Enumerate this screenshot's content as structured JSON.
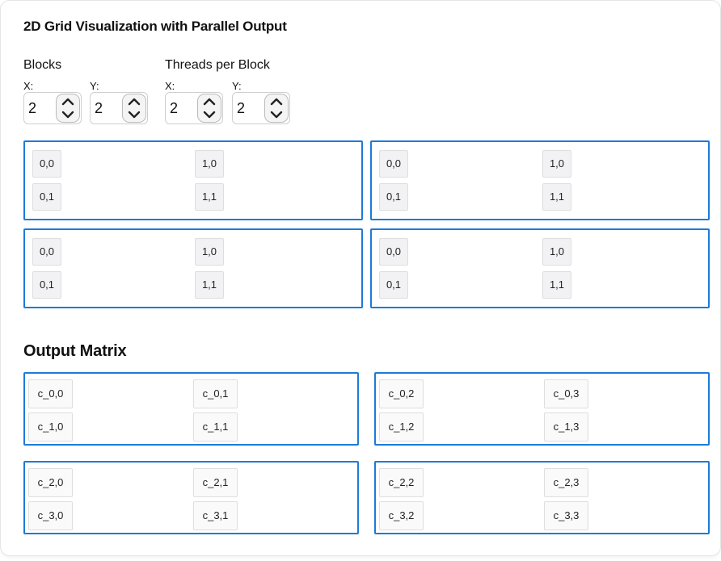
{
  "title": "2D Grid Visualization with Parallel Output",
  "blocks": {
    "label": "Blocks",
    "x_label": "X:",
    "x_value": "2",
    "y_label": "Y:",
    "y_value": "2"
  },
  "threads": {
    "label": "Threads per Block",
    "x_label": "X:",
    "x_value": "2",
    "y_label": "Y:",
    "y_value": "2"
  },
  "grid": [
    {
      "t00": "0,0",
      "t10": "1,0",
      "t01": "0,1",
      "t11": "1,1"
    },
    {
      "t00": "0,0",
      "t10": "1,0",
      "t01": "0,1",
      "t11": "1,1"
    },
    {
      "t00": "0,0",
      "t10": "1,0",
      "t01": "0,1",
      "t11": "1,1"
    },
    {
      "t00": "0,0",
      "t10": "1,0",
      "t01": "0,1",
      "t11": "1,1"
    }
  ],
  "output": {
    "title": "Output Matrix",
    "blocks": [
      {
        "a": "c_0,0",
        "b": "c_0,1",
        "c": "c_1,0",
        "d": "c_1,1"
      },
      {
        "a": "c_0,2",
        "b": "c_0,3",
        "c": "c_1,2",
        "d": "c_1,3"
      },
      {
        "a": "c_2,0",
        "b": "c_2,1",
        "c": "c_3,0",
        "d": "c_3,1"
      },
      {
        "a": "c_2,2",
        "b": "c_2,3",
        "c": "c_3,2",
        "d": "c_3,3"
      }
    ]
  }
}
